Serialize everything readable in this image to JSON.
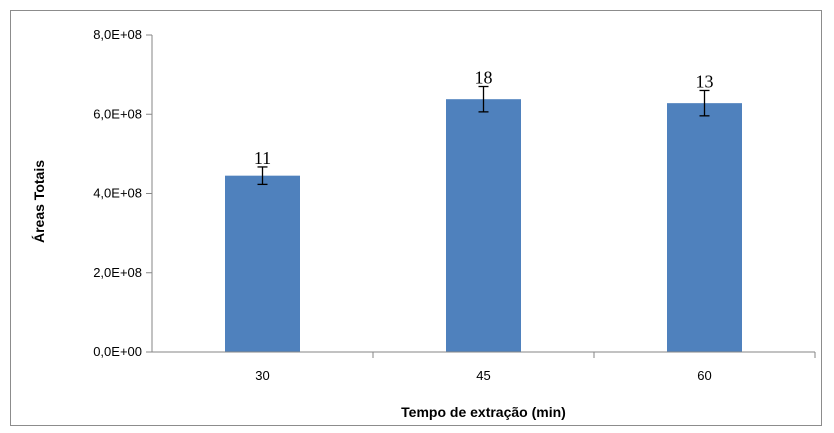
{
  "chart_data": {
    "type": "bar",
    "title": "",
    "xlabel": "Tempo de extração (min)",
    "ylabel": "Áreas Totais",
    "categories": [
      "30",
      "45",
      "60"
    ],
    "values": [
      445000000,
      638000000,
      628000000
    ],
    "error": [
      22000000,
      32000000,
      32000000
    ],
    "data_labels": [
      "11",
      "18",
      "13"
    ],
    "ylim": [
      0,
      800000000
    ],
    "yticks": [
      0,
      200000000,
      400000000,
      600000000,
      800000000
    ],
    "ytick_labels": [
      "0,0E+00",
      "2,0E+08",
      "4,0E+08",
      "6,0E+08",
      "8,0E+08"
    ],
    "grid": false,
    "legend": "none",
    "bar_color": "#4f81bd"
  }
}
